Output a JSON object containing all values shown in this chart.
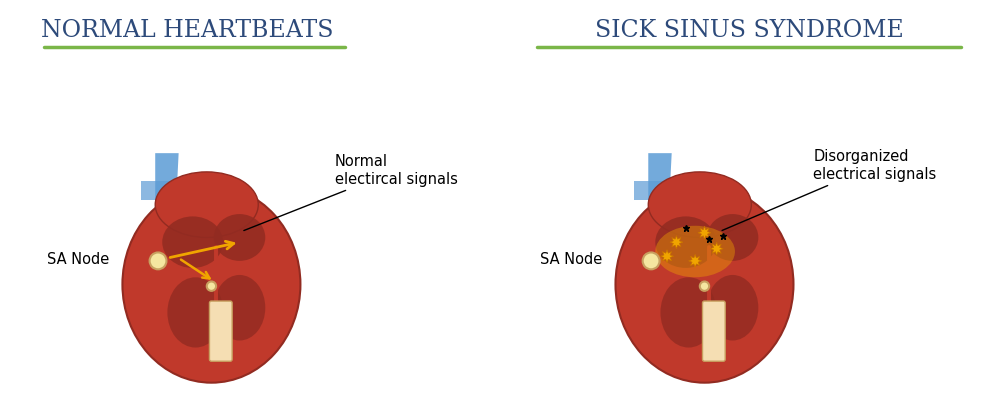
{
  "title_left": "Normal Heartbeats",
  "title_right": "Sick sinus syndrome",
  "title_color": "#2d4a7a",
  "line_color": "#7ab648",
  "bg_color": "#ffffff",
  "label_left_annotation": "Normal\nelectircal signals",
  "label_right_annotation": "Disorganized\nelectrical signals",
  "label_sa_node": "SA Node",
  "heart_red": "#c0392b",
  "heart_dark_red": "#922b21",
  "heart_light_red": "#e74c3c",
  "blue_vessel": "#5b9bd5",
  "yellow_signal": "#f0a500",
  "fig_width": 10.0,
  "fig_height": 4.0
}
